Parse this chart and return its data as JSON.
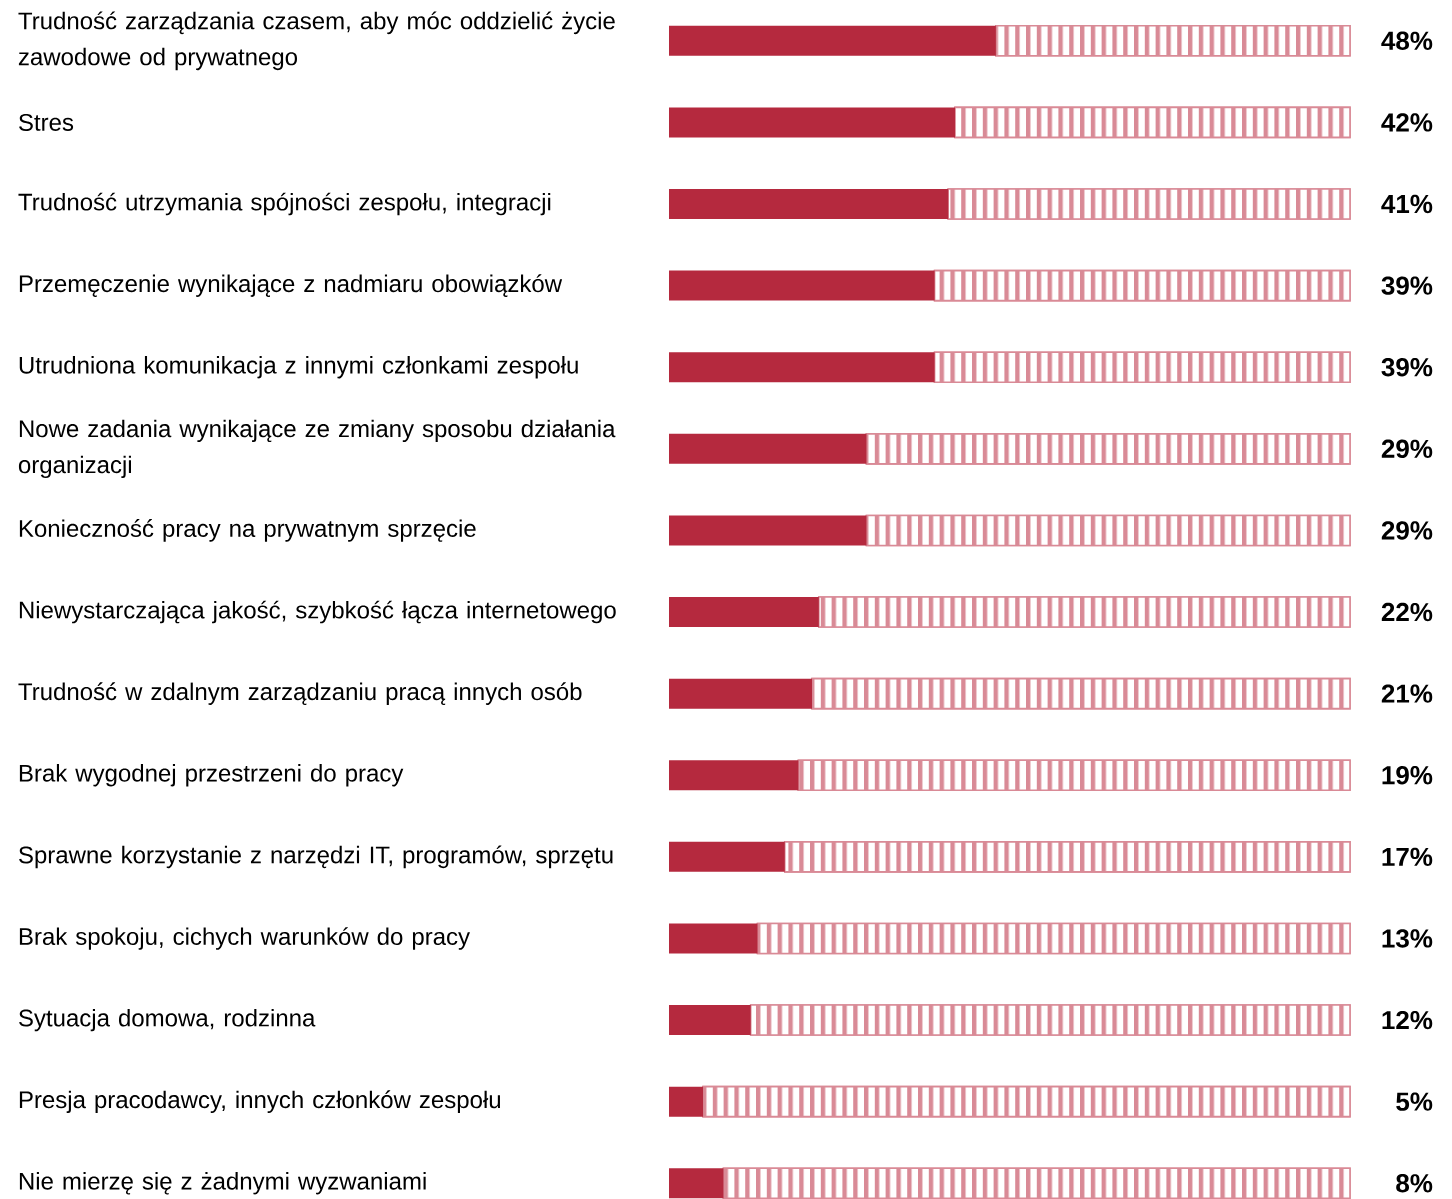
{
  "chart_data": {
    "type": "bar",
    "orientation": "horizontal",
    "stacked": true,
    "xlim": [
      0,
      100
    ],
    "tick_labels": "y",
    "categories": [
      "Trudność zarządzania czasem, aby móc oddzielić życie zawodowe od prywatnego",
      "Stres",
      "Trudność utrzymania spójności zespołu, integracji",
      "Przemęczenie wynikające z nadmiaru obowiązków",
      "Utrudniona komunikacja z innymi członkami zespołu",
      "Nowe zadania wynikające ze zmiany sposobu działania organizacji",
      "Konieczność pracy na prywatnym sprzęcie",
      "Niewystarczająca jakość, szybkość łącza internetowego",
      "Trudność w zdalnym zarządzaniu pracą innych osób",
      "Brak wygodnej przestrzeni do pracy",
      "Sprawne korzystanie z narzędzi IT, programów, sprzętu",
      "Brak spokoju, cichych warunków do pracy",
      "Sytuacja domowa, rodzinna",
      "Presja pracodawcy, innych członków zespołu",
      "Nie mierzę się z żadnymi wyzwaniami"
    ],
    "series": [
      {
        "color": "#b5293e",
        "values": [
          48,
          42,
          41,
          39,
          39,
          29,
          29,
          22,
          21,
          19,
          17,
          13,
          12,
          5,
          8
        ],
        "value_labels": [
          "48%",
          "42%",
          "41%",
          "39%",
          "39%",
          "29%",
          "29%",
          "22%",
          "21%",
          "19%",
          "17%",
          "13%",
          "12%",
          "5%",
          "8%"
        ]
      },
      {
        "color": "#d98a96",
        "values": [
          52,
          58,
          59,
          61,
          61,
          71,
          71,
          78,
          79,
          81,
          83,
          87,
          88,
          95,
          92
        ]
      }
    ]
  }
}
